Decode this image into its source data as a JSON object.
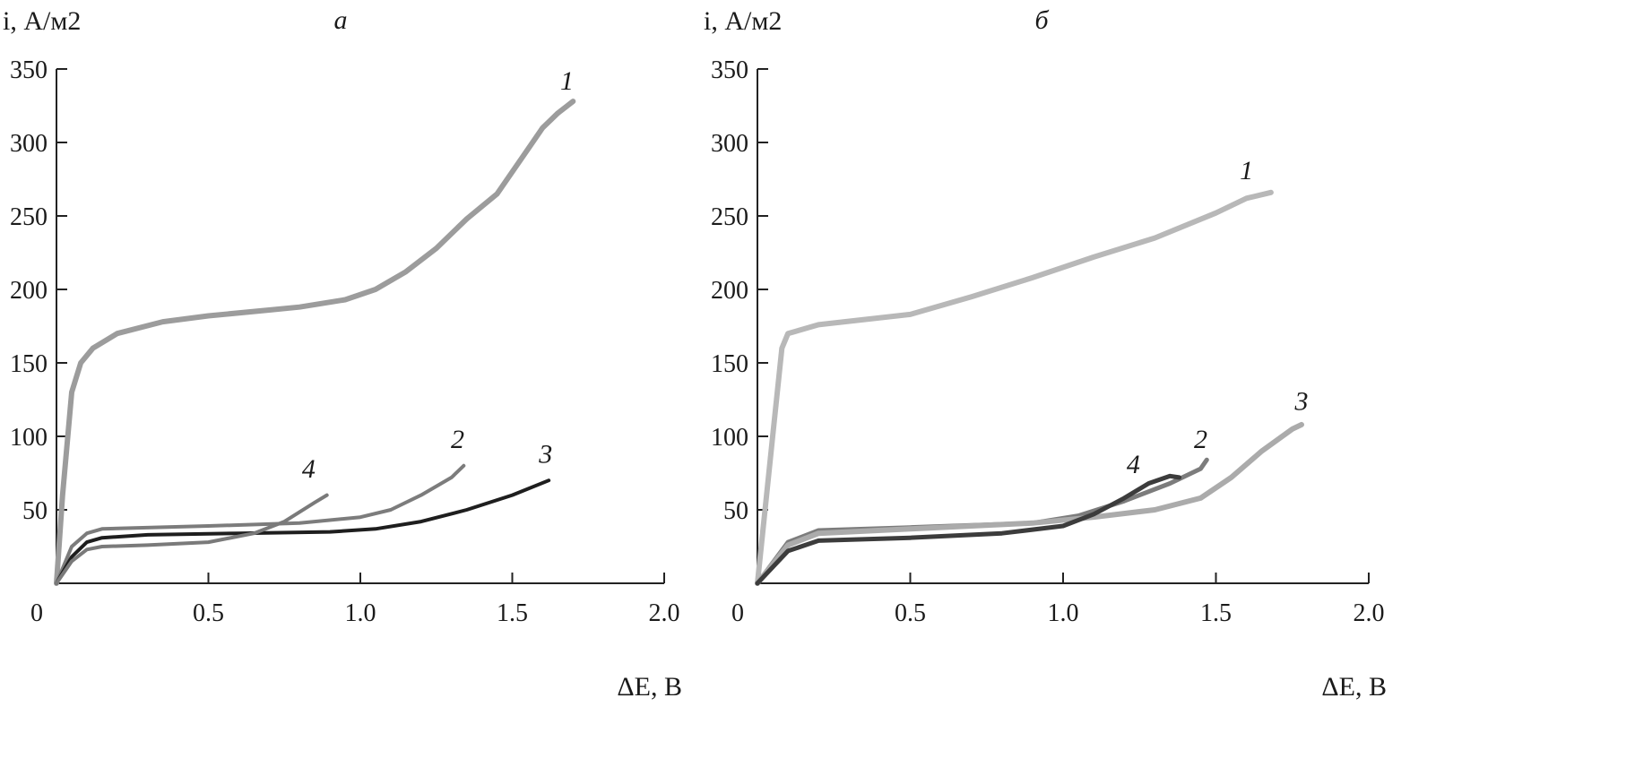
{
  "chart_data": [
    {
      "type": "line",
      "title": "а",
      "xlabel": "ΔE, В",
      "ylabel": "i, А/м2",
      "ylabel_parts": {
        "var": "i",
        "unit": ", А/м",
        "sup": "2"
      },
      "xlabel_parts": {
        "delta": "Δ",
        "var": "E",
        "unit": ", В"
      },
      "xlim": [
        0,
        2.0
      ],
      "ylim": [
        0,
        350
      ],
      "xticks": [
        "0",
        "0.5",
        "1.0",
        "1.5",
        "2.0"
      ],
      "xtick_values": [
        0,
        0.5,
        1.0,
        1.5,
        2.0
      ],
      "yticks": [
        "50",
        "100",
        "150",
        "200",
        "250",
        "300",
        "350"
      ],
      "ytick_values": [
        50,
        100,
        150,
        200,
        250,
        300,
        350
      ],
      "grid": false,
      "series": [
        {
          "name": "1",
          "color": "#9c9c9c",
          "width": 6,
          "label_at": [
            1.68,
            336
          ],
          "x": [
            0,
            0.02,
            0.05,
            0.08,
            0.12,
            0.2,
            0.35,
            0.5,
            0.7,
            0.8,
            0.95,
            1.05,
            1.15,
            1.25,
            1.35,
            1.45,
            1.5,
            1.55,
            1.6,
            1.65,
            1.7
          ],
          "y": [
            0,
            60,
            130,
            150,
            160,
            170,
            178,
            182,
            186,
            188,
            193,
            200,
            212,
            228,
            248,
            265,
            280,
            295,
            310,
            320,
            328
          ]
        },
        {
          "name": "2",
          "color": "#7c7c7c",
          "width": 4,
          "label_at": [
            1.32,
            92
          ],
          "x": [
            0,
            0.05,
            0.1,
            0.15,
            0.5,
            0.8,
            1.0,
            1.1,
            1.2,
            1.3,
            1.34
          ],
          "y": [
            0,
            25,
            34,
            37,
            39,
            41,
            45,
            50,
            60,
            72,
            80
          ]
        },
        {
          "name": "3",
          "color": "#1e1e1e",
          "width": 4,
          "label_at": [
            1.61,
            82
          ],
          "x": [
            0,
            0.05,
            0.1,
            0.15,
            0.3,
            0.6,
            0.9,
            1.05,
            1.2,
            1.35,
            1.5,
            1.62
          ],
          "y": [
            0,
            18,
            28,
            31,
            33,
            34,
            35,
            37,
            42,
            50,
            60,
            70
          ]
        },
        {
          "name": "4",
          "color": "#7a7a7a",
          "width": 4,
          "label_at": [
            0.83,
            72
          ],
          "x": [
            0,
            0.05,
            0.1,
            0.15,
            0.3,
            0.5,
            0.65,
            0.75,
            0.85,
            0.89
          ],
          "y": [
            0,
            15,
            23,
            25,
            26,
            28,
            34,
            42,
            55,
            60
          ]
        }
      ]
    },
    {
      "type": "line",
      "title": "б",
      "xlabel": "ΔE, В",
      "ylabel": "i, А/м2",
      "ylabel_parts": {
        "var": "i",
        "unit": ", А/м",
        "sup": "2"
      },
      "xlabel_parts": {
        "delta": "Δ",
        "var": "E",
        "unit": ", В"
      },
      "xlim": [
        0,
        2.0
      ],
      "ylim": [
        0,
        350
      ],
      "xticks": [
        "0",
        "0.5",
        "1.0",
        "1.5",
        "2.0"
      ],
      "xtick_values": [
        0,
        0.5,
        1.0,
        1.5,
        2.0
      ],
      "yticks": [
        "50",
        "100",
        "150",
        "200",
        "250",
        "300",
        "350"
      ],
      "ytick_values": [
        50,
        100,
        150,
        200,
        250,
        300,
        350
      ],
      "grid": false,
      "series": [
        {
          "name": "1",
          "color": "#b8b8b8",
          "width": 6,
          "label_at": [
            1.6,
            275
          ],
          "x": [
            0,
            0.05,
            0.08,
            0.1,
            0.2,
            0.5,
            0.7,
            0.9,
            1.1,
            1.3,
            1.5,
            1.6,
            1.68
          ],
          "y": [
            0,
            100,
            160,
            170,
            176,
            183,
            195,
            208,
            222,
            235,
            252,
            262,
            266
          ]
        },
        {
          "name": "2",
          "color": "#7c7c7c",
          "width": 5,
          "label_at": [
            1.45,
            92
          ],
          "x": [
            0,
            0.1,
            0.2,
            0.5,
            0.9,
            1.05,
            1.2,
            1.35,
            1.45,
            1.47
          ],
          "y": [
            0,
            28,
            36,
            38,
            41,
            46,
            56,
            68,
            78,
            84
          ]
        },
        {
          "name": "3",
          "color": "#ababab",
          "width": 6,
          "label_at": [
            1.78,
            118
          ],
          "x": [
            0,
            0.1,
            0.2,
            0.5,
            0.9,
            1.1,
            1.3,
            1.45,
            1.55,
            1.65,
            1.75,
            1.78
          ],
          "y": [
            0,
            26,
            34,
            37,
            41,
            45,
            50,
            58,
            72,
            90,
            105,
            108
          ]
        },
        {
          "name": "4",
          "color": "#3c3c3c",
          "width": 5,
          "label_at": [
            1.23,
            75
          ],
          "x": [
            0,
            0.1,
            0.2,
            0.5,
            0.8,
            1.0,
            1.1,
            1.2,
            1.28,
            1.35,
            1.38
          ],
          "y": [
            0,
            22,
            29,
            31,
            34,
            39,
            47,
            58,
            68,
            73,
            72
          ]
        }
      ]
    }
  ]
}
